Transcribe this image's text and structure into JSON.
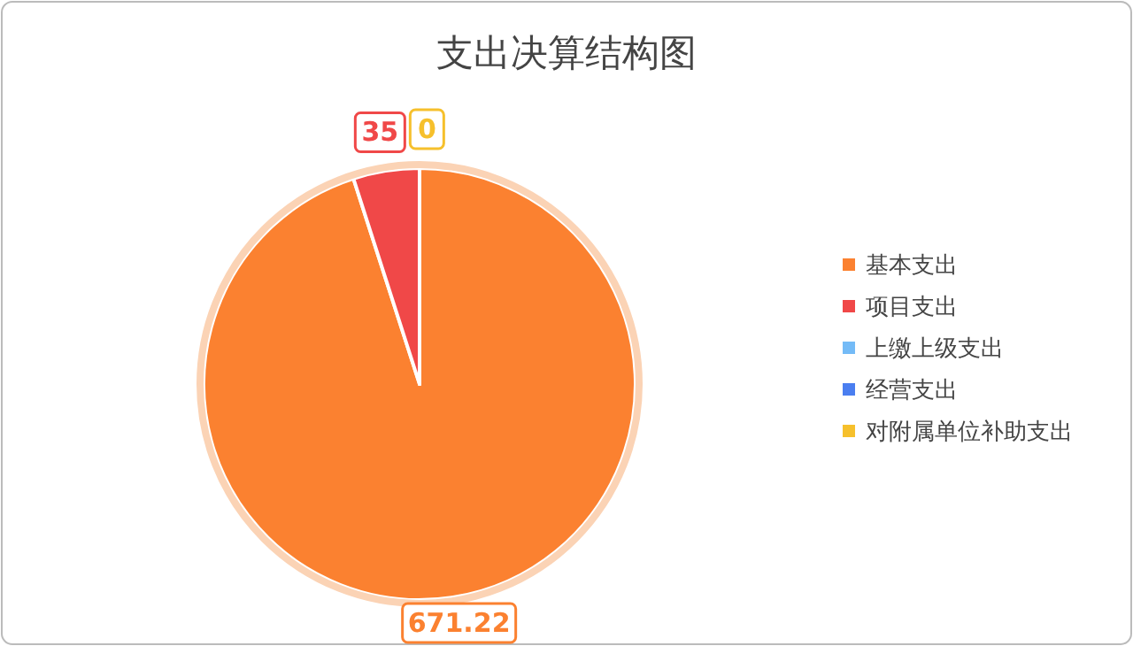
{
  "chart_data": {
    "type": "pie",
    "title": "支出决算结构图",
    "categories": [
      "基本支出",
      "项目支出",
      "上缴上级支出",
      "经营支出",
      "对附属单位补助支出"
    ],
    "values": [
      671.22,
      35,
      0,
      0,
      0
    ],
    "colors": [
      "#fb8130",
      "#f04848",
      "#74bbf7",
      "#4a7ef0",
      "#f6c02c"
    ],
    "value_labels": [
      "671.22",
      "35",
      null,
      null,
      "0"
    ],
    "legend": "right"
  }
}
